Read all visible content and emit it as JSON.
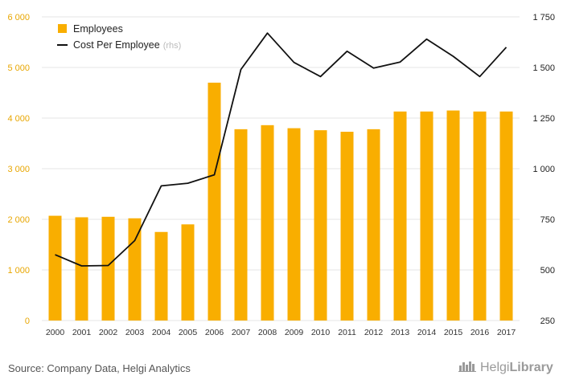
{
  "chart_data": {
    "type": "bar+line",
    "categories": [
      "2000",
      "2001",
      "2002",
      "2003",
      "2004",
      "2005",
      "2006",
      "2007",
      "2008",
      "2009",
      "2010",
      "2011",
      "2012",
      "2013",
      "2014",
      "2015",
      "2016",
      "2017"
    ],
    "series": [
      {
        "name": "Employees",
        "type": "bar",
        "axis": "left",
        "values": [
          2070,
          2040,
          2050,
          2020,
          1750,
          1900,
          4700,
          3780,
          3860,
          3800,
          3760,
          3730,
          3780,
          4130,
          4130,
          4150,
          4130,
          4130
        ]
      },
      {
        "name": "Cost Per Employee",
        "name_suffix": "(rhs)",
        "type": "line",
        "axis": "right",
        "values": [
          575,
          520,
          522,
          645,
          915,
          928,
          970,
          1490,
          1670,
          1525,
          1455,
          1580,
          1497,
          1527,
          1640,
          1555,
          1455,
          1600
        ]
      }
    ],
    "y_left": {
      "ylim": [
        0,
        6000
      ],
      "ticks": [
        0,
        1000,
        2000,
        3000,
        4000,
        5000,
        6000
      ],
      "tick_labels": [
        "0",
        "1 000",
        "2 000",
        "3 000",
        "4 000",
        "5 000",
        "6 000"
      ]
    },
    "y_right": {
      "ylim": [
        250,
        1750
      ],
      "ticks": [
        250,
        500,
        750,
        1000,
        1250,
        1500,
        1750
      ],
      "tick_labels": [
        "250",
        "500",
        "750",
        "1 000",
        "1 250",
        "1 500",
        "1 750"
      ]
    },
    "title": "",
    "xlabel": "",
    "ylabel": "",
    "grid": true,
    "legend_position": "top-left"
  },
  "colors": {
    "bar": "#f9ae00",
    "line": "#111111",
    "grid": "#e6e6e6",
    "left_axis_text": "#e8a600"
  },
  "footer": {
    "source": "Source: Company Data, Helgi Analytics",
    "logo_part1": "Helgi",
    "logo_part2": "Library"
  },
  "logo_icon": "buildings-icon"
}
